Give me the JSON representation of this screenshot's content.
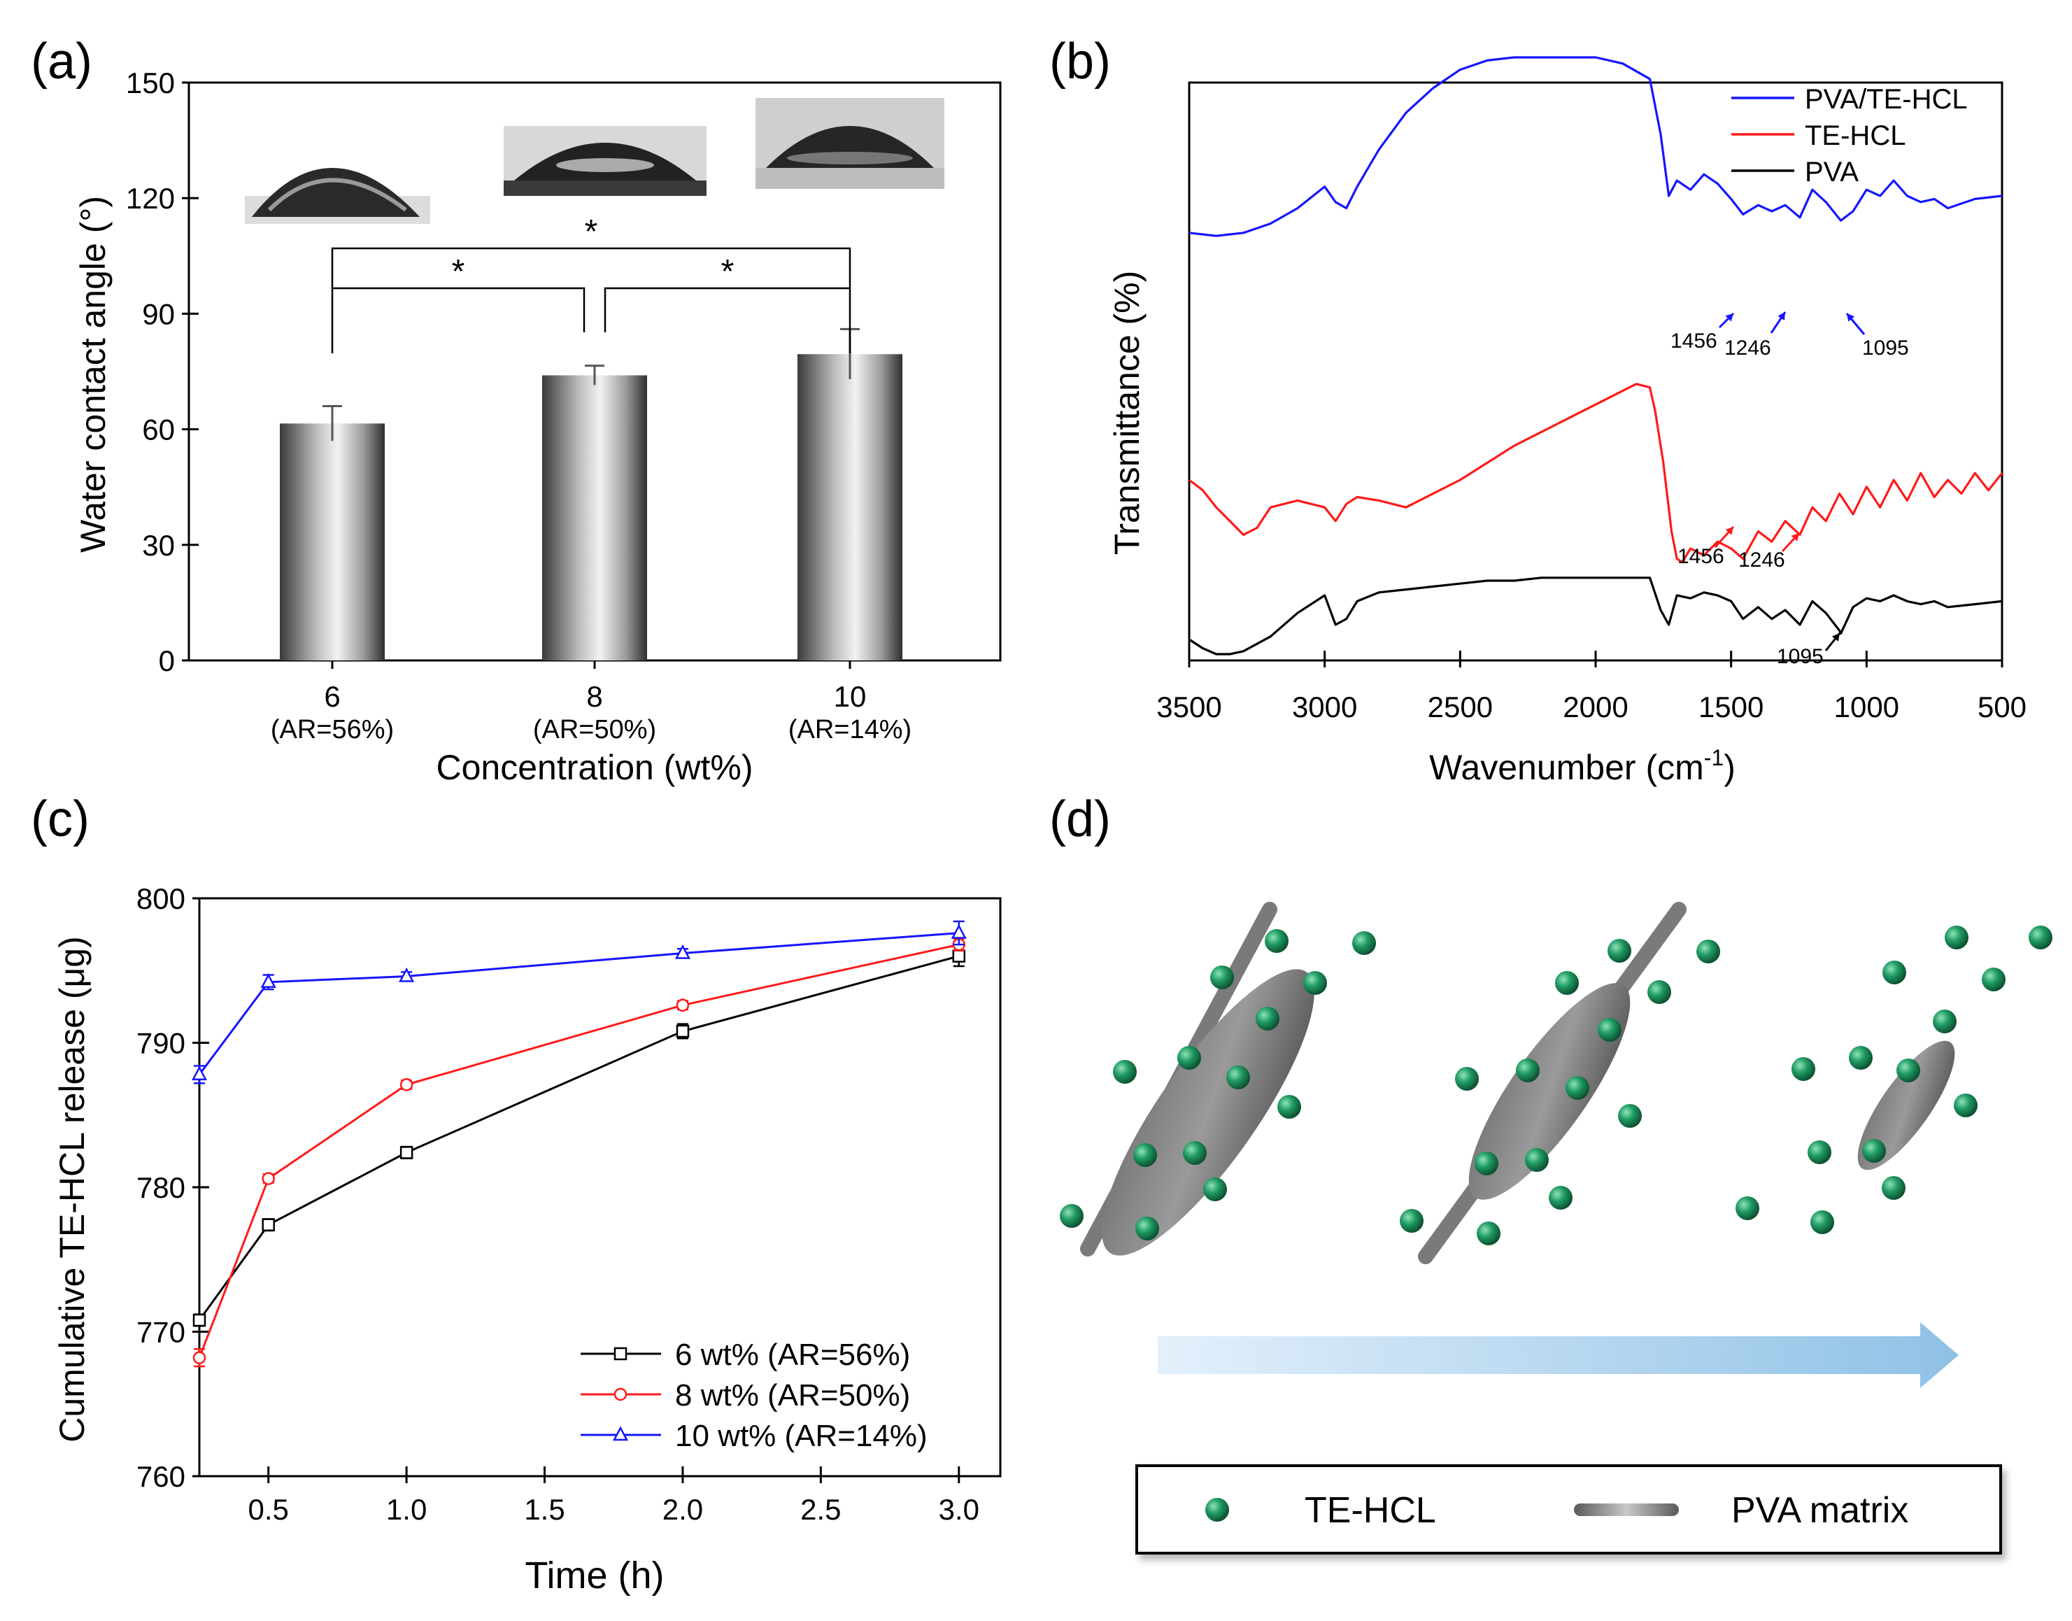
{
  "colors": {
    "blue": "#1515ff",
    "red": "#ff1a1a",
    "black": "#000000",
    "teal": "#1f8a5a"
  },
  "panel_labels": {
    "a": "(a)",
    "b": "(b)",
    "c": "(c)",
    "d": "(d)"
  },
  "chart_data": [
    {
      "type": "bar",
      "panel": "a",
      "ylabel": "Water contact angle (°)",
      "xlabel": "Concentration (wt%)",
      "ylim": [
        0,
        150
      ],
      "yticks": [
        "0",
        "30",
        "60",
        "90",
        "120",
        "150"
      ],
      "categories": [
        "6",
        "8",
        "10"
      ],
      "category_sublabels": [
        "(AR=56%)",
        "(AR=50%)",
        "(AR=14%)"
      ],
      "values": [
        61.5,
        74,
        79.5
      ],
      "errors": [
        4.5,
        2.5,
        6.5
      ],
      "significance": [
        {
          "from": 0,
          "to": 1,
          "label": "*"
        },
        {
          "from": 1,
          "to": 2,
          "label": "*"
        },
        {
          "from": 0,
          "to": 2,
          "label": "*"
        }
      ]
    },
    {
      "type": "line",
      "panel": "b",
      "xlabel": "Wavenumber (cm",
      "xlabel_sup": "-1",
      "xlabel_tail": ")",
      "ylabel": "Transmittance (%)",
      "xlim": [
        3500,
        500
      ],
      "xticks": [
        "3500",
        "3000",
        "2500",
        "2000",
        "1500",
        "1000",
        "500"
      ],
      "legend": [
        "PVA/TE-HCL",
        "TE-HCL",
        "PVA"
      ],
      "series": [
        {
          "name": "PVA/TE-HCL",
          "x": [
            3500,
            3400,
            3300,
            3200,
            3100,
            3000,
            2960,
            2920,
            2880,
            2800,
            2700,
            2600,
            2500,
            2400,
            2300,
            2200,
            2100,
            2000,
            1900,
            1800,
            1760,
            1730,
            1700,
            1650,
            1600,
            1550,
            1500,
            1456,
            1400,
            1350,
            1300,
            1246,
            1200,
            1150,
            1095,
            1050,
            1000,
            950,
            900,
            850,
            800,
            750,
            700,
            600,
            500
          ],
          "y": [
            0.88,
            0.87,
            0.88,
            0.91,
            0.96,
            1.03,
            0.98,
            0.96,
            1.03,
            1.15,
            1.27,
            1.35,
            1.41,
            1.44,
            1.45,
            1.45,
            1.45,
            1.45,
            1.43,
            1.38,
            1.2,
            1.0,
            1.05,
            1.02,
            1.07,
            1.04,
            0.99,
            0.94,
            0.97,
            0.95,
            0.97,
            0.93,
            1.02,
            0.98,
            0.92,
            0.95,
            1.02,
            1.0,
            1.05,
            1.0,
            0.98,
            0.99,
            0.96,
            0.99,
            1.0
          ]
        },
        {
          "name": "TE-HCL",
          "x": [
            3500,
            3450,
            3400,
            3350,
            3300,
            3250,
            3200,
            3100,
            3000,
            2960,
            2920,
            2880,
            2800,
            2700,
            2600,
            2500,
            2400,
            2300,
            2200,
            2100,
            2000,
            1900,
            1850,
            1800,
            1780,
            1750,
            1720,
            1700,
            1680,
            1650,
            1600,
            1550,
            1500,
            1456,
            1400,
            1350,
            1300,
            1246,
            1200,
            1150,
            1100,
            1050,
            1000,
            950,
            900,
            850,
            800,
            750,
            700,
            650,
            600,
            550,
            500
          ],
          "y": [
            0.6,
            0.57,
            0.52,
            0.48,
            0.44,
            0.46,
            0.52,
            0.54,
            0.52,
            0.48,
            0.53,
            0.55,
            0.54,
            0.52,
            0.56,
            0.6,
            0.65,
            0.7,
            0.74,
            0.78,
            0.82,
            0.86,
            0.88,
            0.87,
            0.8,
            0.65,
            0.45,
            0.37,
            0.36,
            0.4,
            0.38,
            0.42,
            0.4,
            0.37,
            0.45,
            0.42,
            0.48,
            0.44,
            0.52,
            0.48,
            0.56,
            0.5,
            0.58,
            0.52,
            0.6,
            0.54,
            0.62,
            0.55,
            0.6,
            0.56,
            0.62,
            0.57,
            0.62
          ]
        },
        {
          "name": "PVA",
          "x": [
            3500,
            3450,
            3400,
            3350,
            3300,
            3200,
            3100,
            3000,
            2960,
            2920,
            2880,
            2800,
            2700,
            2600,
            2500,
            2400,
            2300,
            2200,
            2100,
            2000,
            1900,
            1800,
            1760,
            1730,
            1700,
            1650,
            1600,
            1550,
            1500,
            1456,
            1400,
            1350,
            1300,
            1246,
            1200,
            1150,
            1100,
            1095,
            1050,
            1000,
            950,
            900,
            850,
            800,
            750,
            700,
            600,
            500
          ],
          "y": [
            0.05,
            0.02,
            0.0,
            0.0,
            0.01,
            0.06,
            0.14,
            0.2,
            0.1,
            0.12,
            0.18,
            0.21,
            0.22,
            0.23,
            0.24,
            0.25,
            0.25,
            0.26,
            0.26,
            0.26,
            0.26,
            0.26,
            0.15,
            0.1,
            0.2,
            0.19,
            0.21,
            0.2,
            0.18,
            0.12,
            0.16,
            0.12,
            0.15,
            0.1,
            0.18,
            0.14,
            0.08,
            0.07,
            0.16,
            0.19,
            0.18,
            0.2,
            0.18,
            0.17,
            0.18,
            0.16,
            0.17,
            0.18
          ]
        }
      ],
      "annotations": [
        {
          "text": "1456",
          "series": "PVA/TE-HCL"
        },
        {
          "text": "1246",
          "series": "PVA/TE-HCL"
        },
        {
          "text": "1095",
          "series": "PVA/TE-HCL"
        },
        {
          "text": "1456",
          "series": "TE-HCL"
        },
        {
          "text": "1246",
          "series": "TE-HCL"
        },
        {
          "text": "1095",
          "series": "PVA"
        }
      ]
    },
    {
      "type": "line",
      "panel": "c",
      "xlabel": "Time (h)",
      "ylabel": "Cumulative TE-HCL release (μg)",
      "xlim": [
        0.25,
        3.15
      ],
      "ylim": [
        760,
        800
      ],
      "xticks": [
        "0.5",
        "1.0",
        "1.5",
        "2.0",
        "2.5",
        "3.0"
      ],
      "yticks": [
        "760",
        "770",
        "780",
        "790",
        "800"
      ],
      "series": [
        {
          "name": "6 wt% (AR=56%)",
          "x": [
            0.25,
            0.5,
            1.0,
            2.0,
            3.0
          ],
          "y": [
            770.8,
            777.4,
            782.4,
            790.8,
            796.0
          ],
          "errors": [
            0.4,
            0.4,
            0.4,
            0.5,
            0.7
          ]
        },
        {
          "name": "8 wt% (AR=50%)",
          "x": [
            0.25,
            0.5,
            1.0,
            2.0,
            3.0
          ],
          "y": [
            768.2,
            780.6,
            787.1,
            792.6,
            796.8
          ],
          "errors": [
            0.6,
            0.3,
            0.3,
            0.3,
            0.4
          ]
        },
        {
          "name": "10 wt% (AR=14%)",
          "x": [
            0.25,
            0.5,
            1.0,
            2.0,
            3.0
          ],
          "y": [
            787.8,
            794.2,
            794.6,
            796.2,
            797.6
          ],
          "errors": [
            0.6,
            0.5,
            0.3,
            0.3,
            0.8
          ]
        }
      ]
    }
  ],
  "schematic": {
    "legend_drug": "TE-HCL",
    "legend_matrix": "PVA matrix"
  }
}
